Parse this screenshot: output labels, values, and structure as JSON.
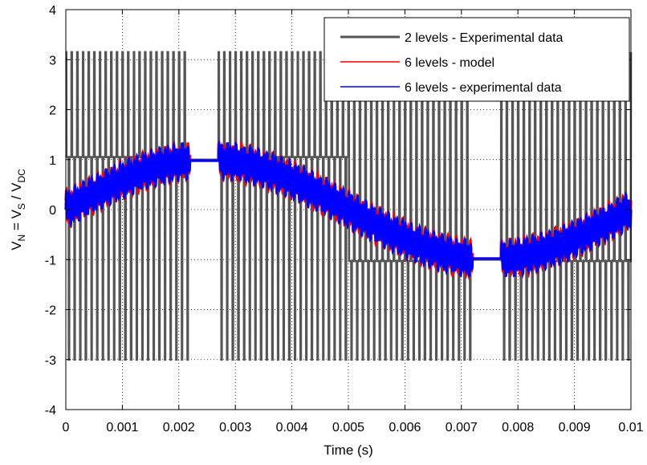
{
  "chart_data": {
    "type": "line",
    "title": "",
    "xlabel": "Time (s)",
    "ylabel": {
      "parts": [
        {
          "text": "V",
          "sub": false
        },
        {
          "text": "N",
          "sub": true
        },
        {
          "text": " = V",
          "sub": false
        },
        {
          "text": "S",
          "sub": true
        },
        {
          "text": " / V",
          "sub": false
        },
        {
          "text": "DC",
          "sub": true
        }
      ]
    },
    "xlim": [
      0,
      0.01
    ],
    "ylim": [
      -4,
      4
    ],
    "x_ticks": [
      "0",
      "0.001",
      "0.002",
      "0.003",
      "0.004",
      "0.005",
      "0.006",
      "0.007",
      "0.008",
      "0.009",
      "0.01"
    ],
    "y_ticks": [
      "4",
      "3",
      "2",
      "1",
      "0",
      "-1",
      "-2",
      "-3",
      "-4"
    ],
    "grid": "dotted",
    "legend_position": "top-right",
    "series": [
      {
        "name": "2 levels - Experimental data",
        "color": "#555555",
        "description": "PWM pulses switching between about +/-1 and +/-3",
        "fundamental_amplitude": 1,
        "pulse_high": 3.15,
        "pulse_low": -3.0,
        "baseline_high": 1.05,
        "baseline_low": -1.03
      },
      {
        "name": "6 levels - model",
        "color": "#ff0000",
        "fundamental_amplitude": 1,
        "ripple": 0.3
      },
      {
        "name": "6 levels - experimental data",
        "color": "#0000ff",
        "fundamental_amplitude": 1,
        "ripple": 0.28
      }
    ],
    "fundamental_period": 0.01,
    "flat_top_interval": [
      0.0022,
      0.0027
    ],
    "flat_bottom_interval": [
      0.0072,
      0.0077
    ]
  }
}
